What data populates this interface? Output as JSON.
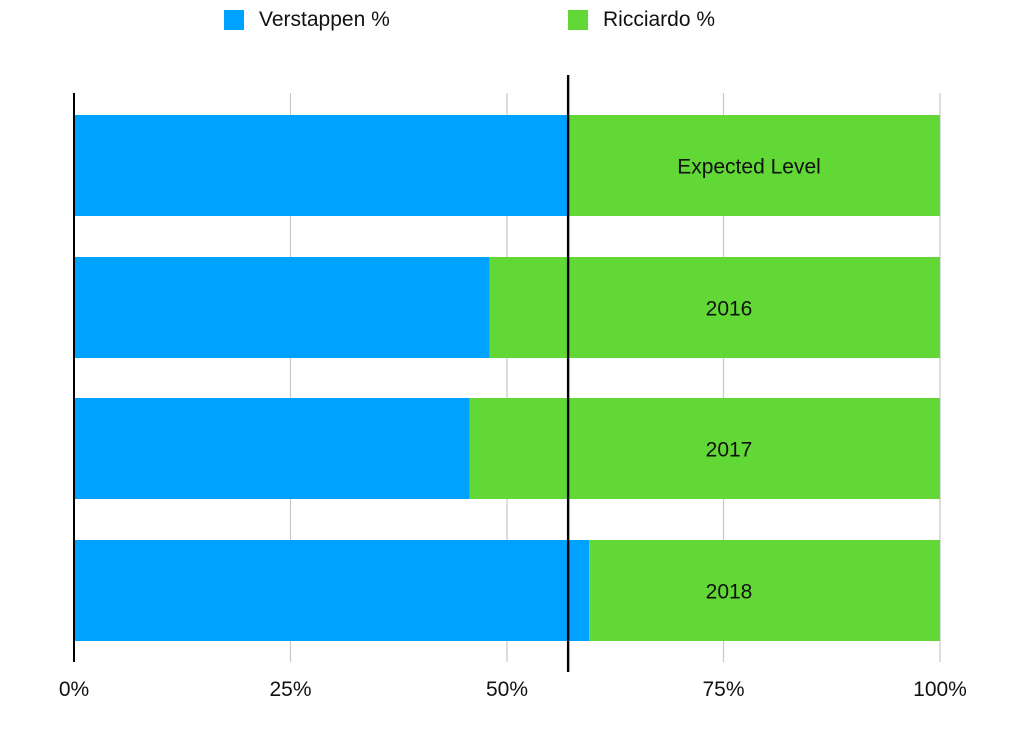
{
  "chart_data": {
    "type": "bar",
    "orientation": "horizontal",
    "stacked": true,
    "percent": true,
    "title": "",
    "xlabel": "",
    "ylabel": "",
    "xlim": [
      0,
      100
    ],
    "x_ticks": [
      "0%",
      "25%",
      "50%",
      "75%",
      "100%"
    ],
    "x_tick_values": [
      0,
      25,
      50,
      75,
      100
    ],
    "grid": true,
    "legend_position": "top",
    "categories": [
      "Expected Level",
      "2016",
      "2017",
      "2018"
    ],
    "series": [
      {
        "name": "Verstappen %",
        "color": "#00a2ff",
        "values": [
          57.0,
          48.0,
          45.7,
          59.5
        ]
      },
      {
        "name": "Ricciardo %",
        "color": "#61d836",
        "values": [
          43.0,
          52.0,
          54.3,
          40.5
        ]
      }
    ],
    "reference_line": {
      "value": 57.0,
      "color": "#000000"
    },
    "annotations": []
  }
}
